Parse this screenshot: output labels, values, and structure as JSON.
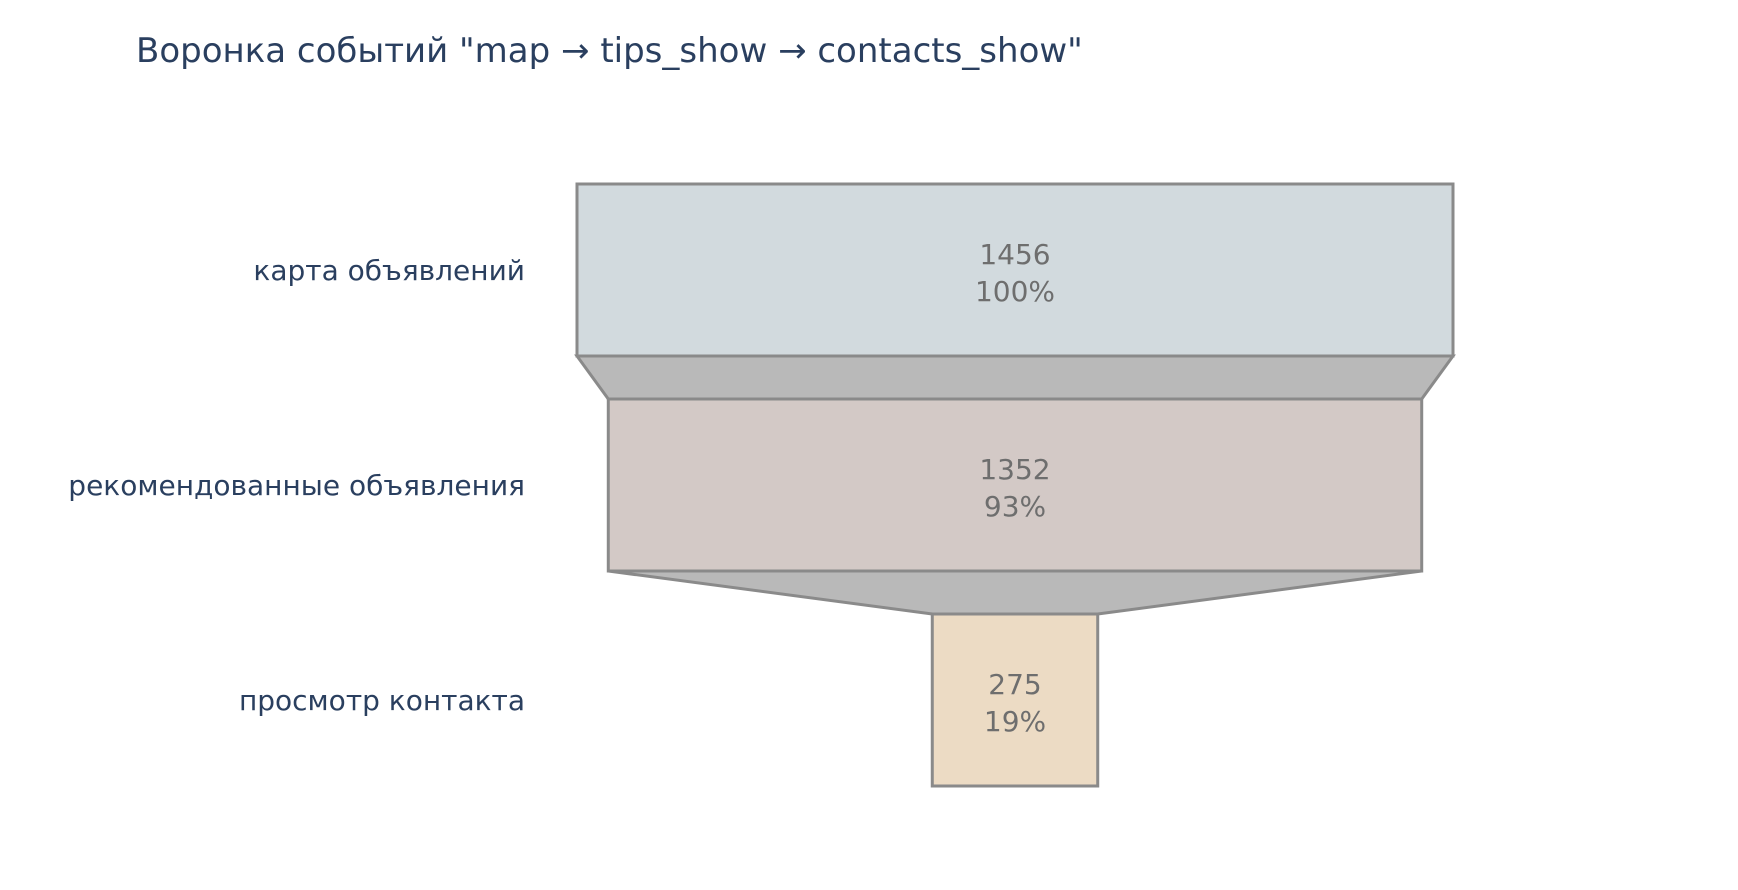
{
  "chart_data": {
    "type": "funnel",
    "title": "Воронка событий \"map → tips_show → contacts_show\"",
    "stages": [
      {
        "label": "карта объявлений",
        "value": 1456,
        "value_text": "1456",
        "percent_text": "100%",
        "color": "#d2dade"
      },
      {
        "label": "рекомендованные объявления",
        "value": 1352,
        "value_text": "1352",
        "percent_text": "93%",
        "color": "#d3c9c6"
      },
      {
        "label": "просмотр контакта",
        "value": 275,
        "value_text": "275",
        "percent_text": "19%",
        "color": "#ecdbc4"
      }
    ],
    "connector_color": "#b9b9b9",
    "legend": "none"
  }
}
